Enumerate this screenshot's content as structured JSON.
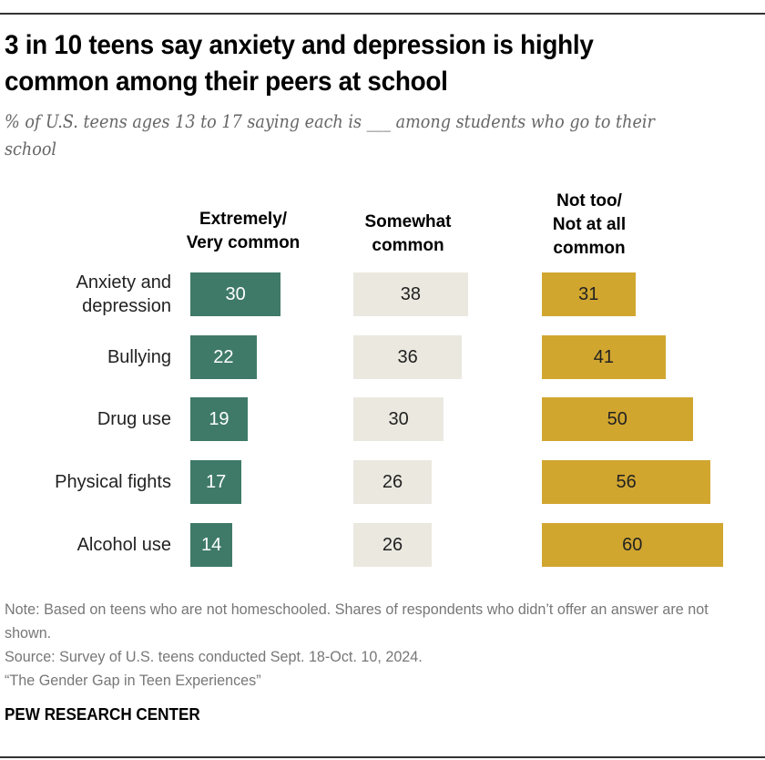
{
  "title": "3 in 10 teens say anxiety and depression is highly common among their peers at school",
  "subtitle": "% of U.S. teens ages 13 to 17 saying each is ___ among students who go to their school",
  "chart_data": {
    "type": "bar",
    "orientation": "horizontal",
    "layout": "small-multiples",
    "categories": [
      "Anxiety and depression",
      "Bullying",
      "Drug use",
      "Physical fights",
      "Alcohol use"
    ],
    "series": [
      {
        "name": "Extremely/ Very common",
        "color": "#3f7a68",
        "label_color": "#ffffff",
        "values": [
          30,
          22,
          19,
          17,
          14
        ]
      },
      {
        "name": "Somewhat common",
        "color": "#ebe8e0",
        "label_color": "#222222",
        "values": [
          38,
          36,
          30,
          26,
          26
        ]
      },
      {
        "name": "Not too/ Not at all common",
        "color": "#d1a62f",
        "label_color": "#222222",
        "values": [
          31,
          41,
          50,
          56,
          60
        ]
      }
    ],
    "xlim": [
      0,
      100
    ],
    "grid": false,
    "data_labels": true
  },
  "notes": {
    "note": "Note: Based on teens who are not homeschooled. Shares of respondents who didn’t offer an answer are not shown.",
    "source": "Source: Survey of U.S. teens conducted Sept. 18-Oct. 10, 2024.",
    "report": "“The Gender Gap in Teen Experiences”"
  },
  "brand": "PEW RESEARCH CENTER"
}
